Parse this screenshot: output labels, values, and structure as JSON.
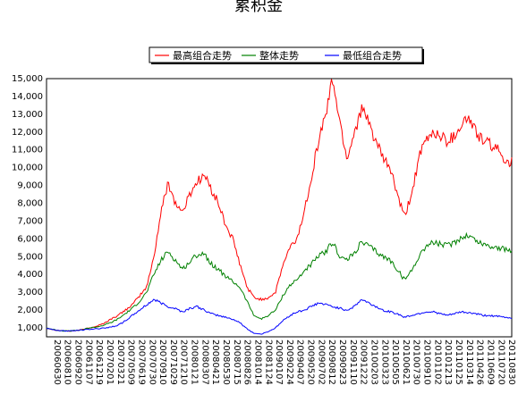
{
  "chart_data": {
    "type": "line",
    "title": "累积金",
    "y_ticks": [
      "1,000",
      "2,000",
      "3,000",
      "4,000",
      "5,000",
      "6,000",
      "7,000",
      "8,000",
      "9,000",
      "10,000",
      "11,000",
      "12,000",
      "13,000",
      "14,000",
      "15,000"
    ],
    "ylim": [
      500,
      15000
    ],
    "x_tick_labels": [
      "20060630",
      "20060810",
      "20060920",
      "20061107",
      "20061219",
      "20070201",
      "20070321",
      "20070509",
      "20070619",
      "20070730",
      "20070910",
      "20071029",
      "20071210",
      "20080121",
      "20080307",
      "20080421",
      "20080530",
      "20080715",
      "20080826",
      "20081014",
      "20081124",
      "20090107",
      "20090224",
      "20090407",
      "20090520",
      "20090702",
      "20090812",
      "20090923",
      "20091110",
      "20091222",
      "20100203",
      "20100323",
      "20100505",
      "20100621",
      "20100730",
      "20100910",
      "20101102",
      "20101213",
      "20110125",
      "20110314",
      "20110426",
      "20110609",
      "20110720",
      "20110830"
    ],
    "legend_position": "top-right",
    "grid": true,
    "series": [
      {
        "name": "最高组合走势",
        "color": "#ff0000",
        "values": [
          1000,
          900,
          850,
          820,
          850,
          900,
          1000,
          1100,
          1250,
          1500,
          1700,
          2000,
          2300,
          2800,
          3300,
          5000,
          7500,
          9200,
          8000,
          7500,
          8500,
          9200,
          9600,
          8800,
          8000,
          6800,
          6000,
          4600,
          3300,
          2700,
          2600,
          2700,
          3000,
          4500,
          5500,
          6000,
          7500,
          9500,
          11500,
          13000,
          15000,
          12500,
          10500,
          12000,
          13300,
          12500,
          11500,
          10500,
          10000,
          8500,
          7200,
          8500,
          10500,
          11500,
          12000,
          11800,
          11500,
          11800,
          12500,
          12800,
          12000,
          11500,
          11300,
          11000,
          10500,
          10300
        ]
      },
      {
        "name": "整体走势",
        "color": "#008000",
        "values": [
          1000,
          900,
          850,
          820,
          850,
          900,
          1000,
          1050,
          1150,
          1300,
          1500,
          1800,
          2100,
          2500,
          3000,
          4000,
          4800,
          5300,
          4800,
          4300,
          4700,
          5100,
          5200,
          4600,
          4300,
          3900,
          3600,
          3300,
          2500,
          1700,
          1500,
          1700,
          2000,
          2800,
          3400,
          3700,
          4200,
          4600,
          5000,
          5300,
          5800,
          5000,
          4800,
          5200,
          5800,
          5600,
          5300,
          5000,
          4800,
          4300,
          3700,
          4200,
          5000,
          5600,
          5800,
          5700,
          5600,
          5800,
          6100,
          6200,
          5900,
          5700,
          5600,
          5500,
          5400,
          5300
        ]
      },
      {
        "name": "最低组合走势",
        "color": "#0000ff",
        "values": [
          1000,
          880,
          850,
          820,
          850,
          880,
          920,
          950,
          1000,
          1050,
          1150,
          1400,
          1700,
          2000,
          2300,
          2600,
          2400,
          2200,
          2100,
          1900,
          2100,
          2200,
          2000,
          1800,
          1700,
          1600,
          1500,
          1300,
          950,
          700,
          650,
          800,
          1000,
          1400,
          1700,
          1900,
          2000,
          2200,
          2400,
          2300,
          2200,
          2100,
          2000,
          2200,
          2600,
          2400,
          2200,
          2000,
          1900,
          1800,
          1600,
          1700,
          1800,
          1900,
          1900,
          1800,
          1700,
          1800,
          1900,
          1850,
          1800,
          1700,
          1700,
          1650,
          1600,
          1550
        ]
      }
    ]
  }
}
